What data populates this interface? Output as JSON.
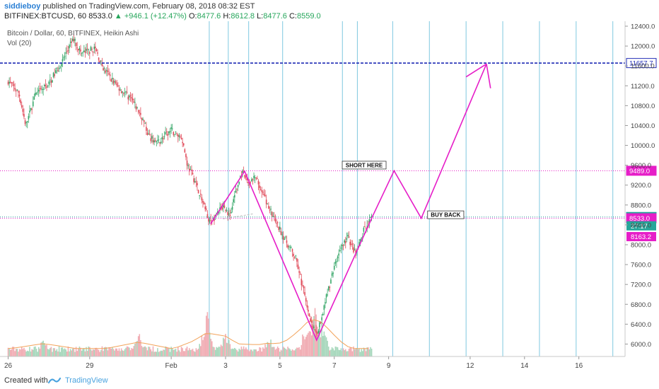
{
  "header": {
    "publisher": "siddieboy",
    "published_text": "published on TradingView.com, February 08, 2018 08:32 EST",
    "symbol": "BITFINEX:BTCUSD, 60",
    "last": "8533.0",
    "change": "▲ +946.1 (+12.47%)",
    "o_label": "O:",
    "o": "8477.6",
    "h_label": "H:",
    "h": "8612.8",
    "l_label": "L:",
    "l": "8477.6",
    "c_label": "C:",
    "c": "8559.0"
  },
  "footer": {
    "created_with": "Created with",
    "brand": "TradingView"
  },
  "chart_data": {
    "type": "candlestick",
    "title": "Bitcoin / Dollar, 60, BITFINEX, Heikin Ashi",
    "indicator": "Vol (20)",
    "ylim": [
      5750,
      12500
    ],
    "y_ticks": [
      6000,
      6400,
      6800,
      7200,
      7600,
      8000,
      8400,
      8800,
      9200,
      9600,
      10000,
      10400,
      10800,
      11200,
      11600,
      12000,
      12400
    ],
    "x_ticks": [
      {
        "label": "26",
        "day": 0
      },
      {
        "label": "29",
        "day": 3
      },
      {
        "label": "Feb",
        "day": 6
      },
      {
        "label": "3",
        "day": 8
      },
      {
        "label": "5",
        "day": 10
      },
      {
        "label": "7",
        "day": 12
      },
      {
        "label": "9",
        "day": 14
      },
      {
        "label": "12",
        "day": 17
      },
      {
        "label": "14",
        "day": 19
      },
      {
        "label": "16",
        "day": 21
      }
    ],
    "price_path": [
      [
        0,
        11300
      ],
      [
        0.4,
        11050
      ],
      [
        0.65,
        10400
      ],
      [
        1.0,
        11000
      ],
      [
        1.5,
        11250
      ],
      [
        2.0,
        11700
      ],
      [
        2.4,
        12150
      ],
      [
        2.7,
        11850
      ],
      [
        3.2,
        11950
      ],
      [
        3.5,
        11550
      ],
      [
        4.0,
        11200
      ],
      [
        4.5,
        10950
      ],
      [
        4.9,
        10600
      ],
      [
        5.2,
        10150
      ],
      [
        5.5,
        10050
      ],
      [
        6.0,
        10300
      ],
      [
        6.4,
        10150
      ],
      [
        6.6,
        9600
      ],
      [
        6.9,
        9250
      ],
      [
        7.2,
        8800
      ],
      [
        7.45,
        8420
      ],
      [
        7.7,
        8650
      ],
      [
        7.95,
        8800
      ],
      [
        8.15,
        8550
      ],
      [
        8.4,
        9100
      ],
      [
        8.6,
        9450
      ],
      [
        8.85,
        9250
      ],
      [
        9.1,
        9350
      ],
      [
        9.4,
        9000
      ],
      [
        9.8,
        8500
      ],
      [
        10.2,
        8100
      ],
      [
        10.6,
        7700
      ],
      [
        10.9,
        7000
      ],
      [
        11.15,
        6450
      ],
      [
        11.35,
        6150
      ],
      [
        11.6,
        6700
      ],
      [
        11.9,
        7350
      ],
      [
        12.2,
        7900
      ],
      [
        12.5,
        8150
      ],
      [
        12.8,
        7800
      ],
      [
        13.1,
        8300
      ],
      [
        13.4,
        8550
      ]
    ],
    "volume": {
      "baseline": "low",
      "spikes": [
        [
          1.3,
          0.35
        ],
        [
          4.8,
          0.45
        ],
        [
          7.3,
          0.9
        ],
        [
          8.0,
          0.5
        ],
        [
          9.6,
          0.4
        ],
        [
          11.0,
          0.75
        ],
        [
          11.3,
          1.0
        ],
        [
          11.55,
          0.65
        ]
      ]
    },
    "vertical_lines": [
      7.4,
      8.1,
      8.85,
      10.1,
      12.3,
      12.85,
      14.15,
      15.5,
      16.85,
      18.2,
      19.55,
      20.9,
      22.25
    ],
    "horizontal_levels": [
      {
        "value": 11657.7,
        "label": "11657.7",
        "style": "dashed",
        "color": "#1f2bb5"
      },
      {
        "value": 9489.0,
        "label": "9489.0",
        "style": "dotted",
        "color": "#e61ec8"
      },
      {
        "value": 8559.0,
        "label": "8559.0",
        "style": "dotted",
        "color": "#26a69a"
      },
      {
        "value": 8533.0,
        "label": "8533.0",
        "style": "dotted",
        "color": "#e61ec8"
      }
    ],
    "axis_badges": [
      {
        "value": 8380,
        "label": "27:17",
        "color": "#26a69a"
      },
      {
        "value": 8163.2,
        "label": "8163.2",
        "color": "#e61ec8"
      }
    ],
    "drawings": {
      "color": "#e61ec8",
      "pattern": [
        [
          7.45,
          8420
        ],
        [
          8.7,
          9480
        ],
        [
          11.35,
          6080
        ],
        [
          13.45,
          8620
        ]
      ],
      "projection": [
        [
          13.45,
          8620
        ],
        [
          14.2,
          9489
        ],
        [
          15.2,
          8533
        ],
        [
          17.6,
          11640
        ]
      ],
      "arrow_tip": [
        17.6,
        11640
      ],
      "arrow_wings": [
        [
          16.85,
          11380
        ],
        [
          17.75,
          11150
        ]
      ],
      "dashed_segment": [
        [
          7.9,
          8520
        ],
        [
          9.0,
          8620
        ]
      ]
    },
    "annotations": [
      {
        "text": "SHORT HERE",
        "day": 13.1,
        "value": 9560
      },
      {
        "text": "BUY BACK",
        "day": 16.1,
        "value": 8560
      }
    ],
    "x_range_days": [
      -0.3,
      22.7
    ]
  }
}
